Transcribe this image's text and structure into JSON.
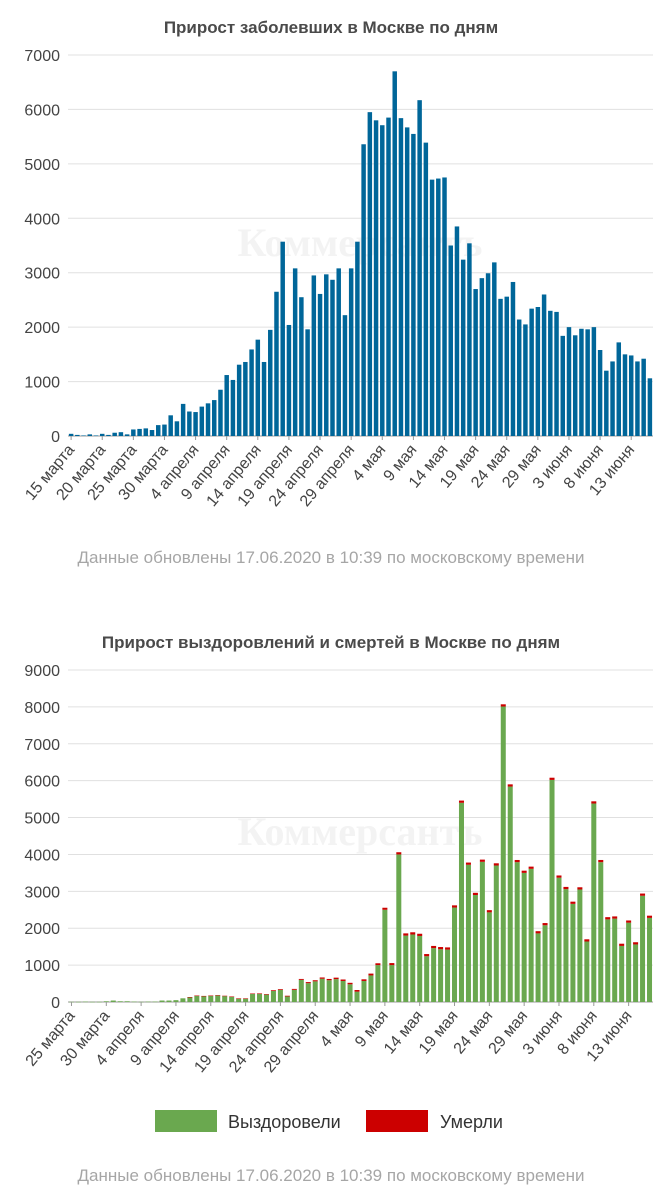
{
  "footer_note": "Данные обновлены 17.06.2020 в 10:39 по московскому времени",
  "watermark": "Коммерсантъ",
  "colors": {
    "cases": "#006699",
    "recovered": "#6aa84f",
    "deaths": "#cc0000",
    "grid": "#e0e0e0",
    "axis": "#999999"
  },
  "chart_data": [
    {
      "type": "bar",
      "title": "Прирост заболевших в Москве по дням",
      "xlabel": "",
      "ylabel": "",
      "ylim": [
        0,
        7000
      ],
      "yticks": [
        0,
        1000,
        2000,
        3000,
        4000,
        5000,
        6000,
        7000
      ],
      "grid": true,
      "x_tick_labels": [
        "15 марта",
        "20 марта",
        "25 марта",
        "30 марта",
        "4 апреля",
        "9 апреля",
        "14 апреля",
        "19 апреля",
        "24 апреля",
        "29 апреля",
        "4 мая",
        "9 мая",
        "14 мая",
        "19 мая",
        "24 мая",
        "29 мая",
        "3 июня",
        "8 июня",
        "13 июня"
      ],
      "x_tick_every": 5,
      "series": [
        {
          "color": "#006699",
          "values": [
            40,
            20,
            10,
            30,
            10,
            40,
            20,
            60,
            70,
            30,
            120,
            130,
            140,
            110,
            200,
            210,
            380,
            270,
            590,
            450,
            440,
            540,
            600,
            660,
            850,
            1120,
            1030,
            1310,
            1360,
            1590,
            1770,
            1360,
            1950,
            2650,
            3570,
            2040,
            3080,
            2550,
            1960,
            2950,
            2610,
            2970,
            2870,
            3080,
            2220,
            3080,
            3570,
            5360,
            5950,
            5800,
            5710,
            5850,
            6700,
            5840,
            5670,
            5550,
            6170,
            5390,
            4710,
            4730,
            4750,
            3500,
            3850,
            3240,
            3540,
            2700,
            2900,
            2990,
            3190,
            2520,
            2560,
            2830,
            2140,
            2050,
            2340,
            2370,
            2600,
            2300,
            2280,
            1840,
            2000,
            1850,
            1970,
            1960,
            2000,
            1580,
            1200,
            1370,
            1720,
            1500,
            1480,
            1370,
            1420,
            1060
          ]
        }
      ]
    },
    {
      "type": "bar",
      "title": "Прирост выздоровлений и смертей в Москве по дням",
      "xlabel": "",
      "ylabel": "",
      "ylim": [
        0,
        9000
      ],
      "yticks": [
        0,
        1000,
        2000,
        3000,
        4000,
        5000,
        6000,
        7000,
        8000,
        9000
      ],
      "grid": true,
      "stacked": true,
      "legend": "bottom",
      "x_tick_labels": [
        "25 марта",
        "30 марта",
        "4 апреля",
        "9 апреля",
        "14 апреля",
        "19 апреля",
        "24 апреля",
        "29 апреля",
        "4 мая",
        "9 мая",
        "14 мая",
        "19 мая",
        "24 мая",
        "29 мая",
        "3 июня",
        "8 июня",
        "13 июня"
      ],
      "x_tick_every": 5,
      "series": [
        {
          "name": "Выздоровели",
          "color": "#6aa84f",
          "values": [
            5,
            5,
            10,
            5,
            5,
            20,
            40,
            20,
            20,
            10,
            5,
            10,
            10,
            40,
            40,
            50,
            100,
            130,
            170,
            160,
            170,
            180,
            160,
            140,
            90,
            90,
            220,
            220,
            200,
            300,
            330,
            150,
            330,
            600,
            510,
            560,
            630,
            590,
            620,
            570,
            480,
            280,
            570,
            720,
            1000,
            2500,
            1000,
            4000,
            1800,
            1830,
            1790,
            1240,
            1460,
            1430,
            1420,
            2560,
            5400,
            3720,
            2900,
            3800,
            2430,
            3700,
            8010,
            5840,
            3790,
            3500,
            3610,
            1860,
            2080,
            6020,
            3370,
            3060,
            2660,
            3050,
            1640,
            5380,
            3790,
            2240,
            2260,
            1520,
            2150,
            1560,
            2880,
            2280
          ]
        },
        {
          "name": "Умерли",
          "color": "#cc0000",
          "values": [
            0,
            0,
            0,
            0,
            0,
            0,
            0,
            0,
            0,
            0,
            0,
            0,
            0,
            0,
            0,
            0,
            0,
            5,
            5,
            5,
            5,
            5,
            10,
            10,
            10,
            10,
            10,
            15,
            15,
            20,
            20,
            20,
            25,
            25,
            30,
            30,
            35,
            35,
            40,
            40,
            40,
            45,
            45,
            50,
            50,
            55,
            55,
            60,
            60,
            60,
            60,
            60,
            60,
            60,
            60,
            60,
            60,
            60,
            60,
            60,
            60,
            60,
            60,
            60,
            60,
            60,
            60,
            60,
            60,
            60,
            60,
            60,
            60,
            60,
            60,
            60,
            60,
            60,
            60,
            60,
            60,
            60,
            60,
            60
          ]
        }
      ]
    }
  ]
}
